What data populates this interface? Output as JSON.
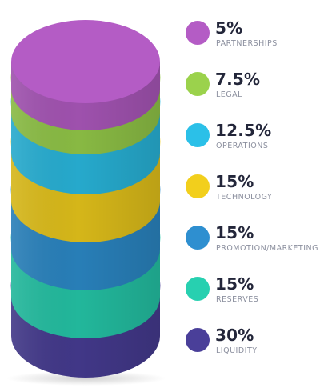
{
  "chart_data": {
    "type": "stacked-cylinder",
    "series": [
      {
        "name": "PARTNERSHIPS",
        "value_label": "5%",
        "value": 5,
        "color": "#b45cc5"
      },
      {
        "name": "LEGAL",
        "value_label": "7.5%",
        "value": 7.5,
        "color": "#9bd24c"
      },
      {
        "name": "OPERATIONS",
        "value_label": "12.5%",
        "value": 12.5,
        "color": "#2bc0e8"
      },
      {
        "name": "TECHNOLOGY",
        "value_label": "15%",
        "value": 15,
        "color": "#f2cf1c"
      },
      {
        "name": "PROMOTION/MARKETING",
        "value_label": "15%",
        "value": 15,
        "color": "#2e8fd0"
      },
      {
        "name": "RESERVES",
        "value_label": "15%",
        "value": 15,
        "color": "#27d0b0"
      },
      {
        "name": "LIQUIDITY",
        "value_label": "30%",
        "value": 30,
        "color": "#4a3f99"
      }
    ]
  }
}
